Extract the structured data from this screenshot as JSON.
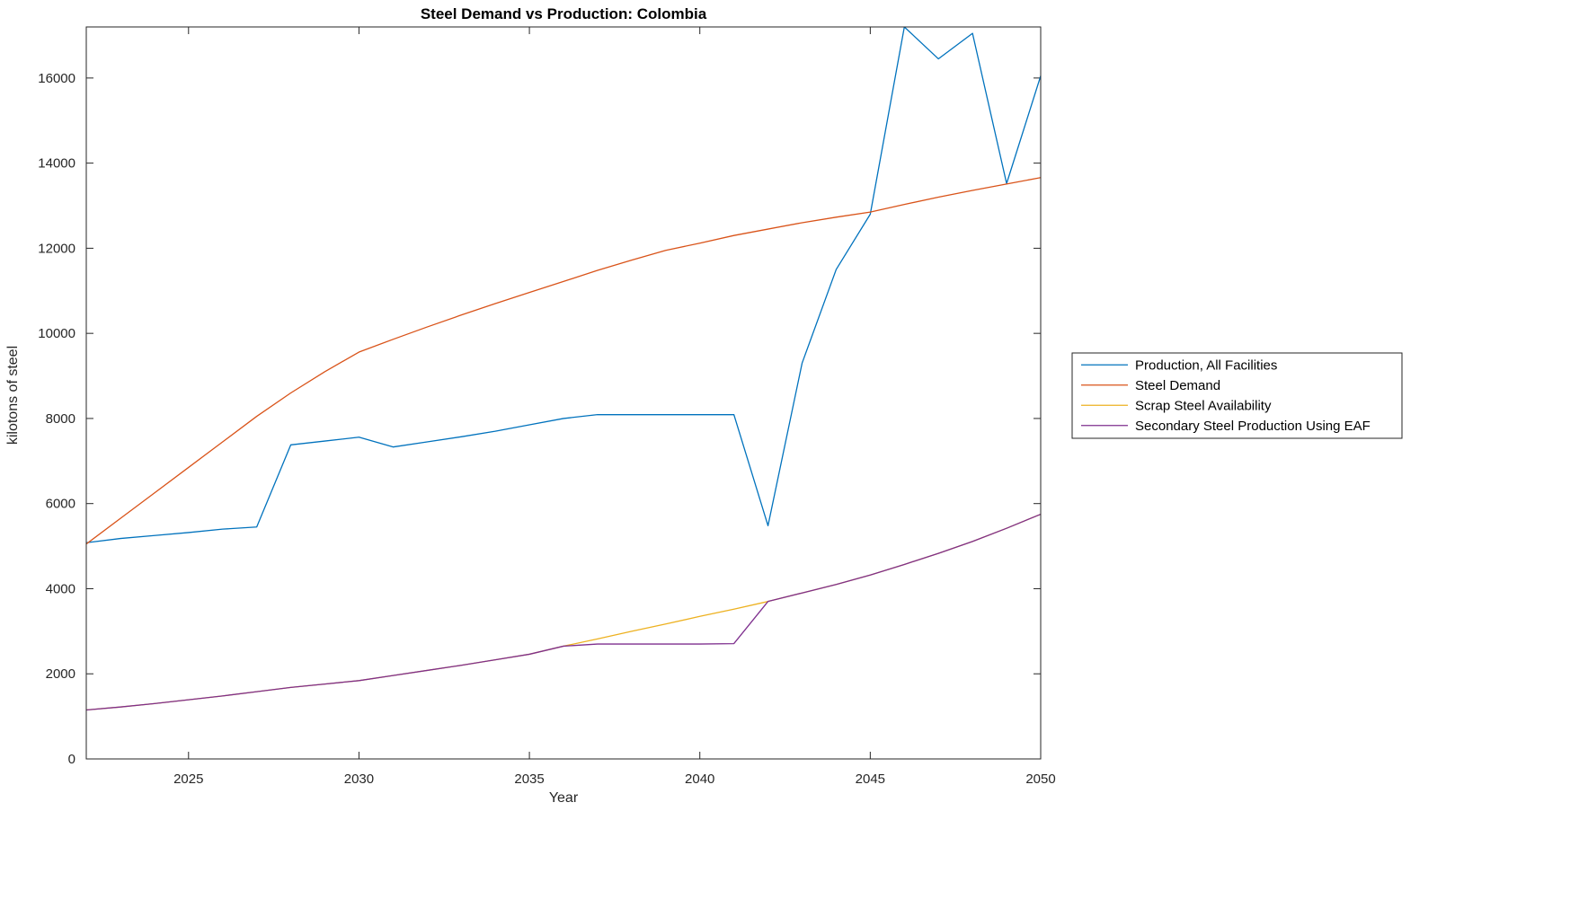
{
  "title": "Steel Demand vs Production: Colombia",
  "chart_data": {
    "type": "line",
    "title": "Steel Demand vs Production: Colombia",
    "xlabel": "Year",
    "ylabel": "kilotons of steel",
    "xlim": [
      2022,
      2050
    ],
    "ylim": [
      0,
      17200
    ],
    "xticks": [
      2025,
      2030,
      2035,
      2040,
      2045,
      2050
    ],
    "yticks": [
      0,
      2000,
      4000,
      6000,
      8000,
      10000,
      12000,
      14000,
      16000
    ],
    "grid": false,
    "legend_position": "right-outside",
    "x": [
      2022,
      2023,
      2024,
      2025,
      2026,
      2027,
      2028,
      2029,
      2030,
      2031,
      2032,
      2033,
      2034,
      2035,
      2036,
      2037,
      2038,
      2039,
      2040,
      2041,
      2042,
      2043,
      2044,
      2045,
      2046,
      2047,
      2048,
      2049,
      2050
    ],
    "series": [
      {
        "name": "Production, All Facilities",
        "color": "#0072BD",
        "values": [
          5080,
          5180,
          5250,
          5320,
          5400,
          5450,
          7380,
          7470,
          7560,
          7330,
          7450,
          7570,
          7700,
          7850,
          8000,
          8090,
          8090,
          8090,
          8090,
          8090,
          5480,
          9300,
          11500,
          12800,
          17200,
          16450,
          17050,
          13520,
          16050
        ]
      },
      {
        "name": "Steel Demand",
        "color": "#D95319",
        "values": [
          5050,
          5650,
          6250,
          6850,
          7450,
          8050,
          8600,
          9100,
          9560,
          9860,
          10150,
          10430,
          10700,
          10960,
          11220,
          11480,
          11720,
          11950,
          12120,
          12300,
          12450,
          12600,
          12730,
          12850,
          13030,
          13200,
          13360,
          13510,
          13660
        ]
      },
      {
        "name": "Scrap Steel Availability",
        "color": "#EDB120",
        "values": [
          1150,
          1220,
          1300,
          1390,
          1480,
          1580,
          1680,
          1760,
          1840,
          1960,
          2080,
          2200,
          2330,
          2460,
          2650,
          2820,
          3000,
          3170,
          3350,
          3520,
          3700,
          3900,
          4100,
          4320,
          4570,
          4830,
          5110,
          5420,
          5750
        ]
      },
      {
        "name": "Secondary Steel Production Using EAF",
        "color": "#7E2F8E",
        "values": [
          1150,
          1220,
          1300,
          1390,
          1480,
          1580,
          1680,
          1760,
          1840,
          1960,
          2080,
          2200,
          2330,
          2460,
          2650,
          2700,
          2700,
          2700,
          2700,
          2710,
          3700,
          3900,
          4100,
          4320,
          4570,
          4830,
          5110,
          5420,
          5750
        ]
      }
    ]
  }
}
